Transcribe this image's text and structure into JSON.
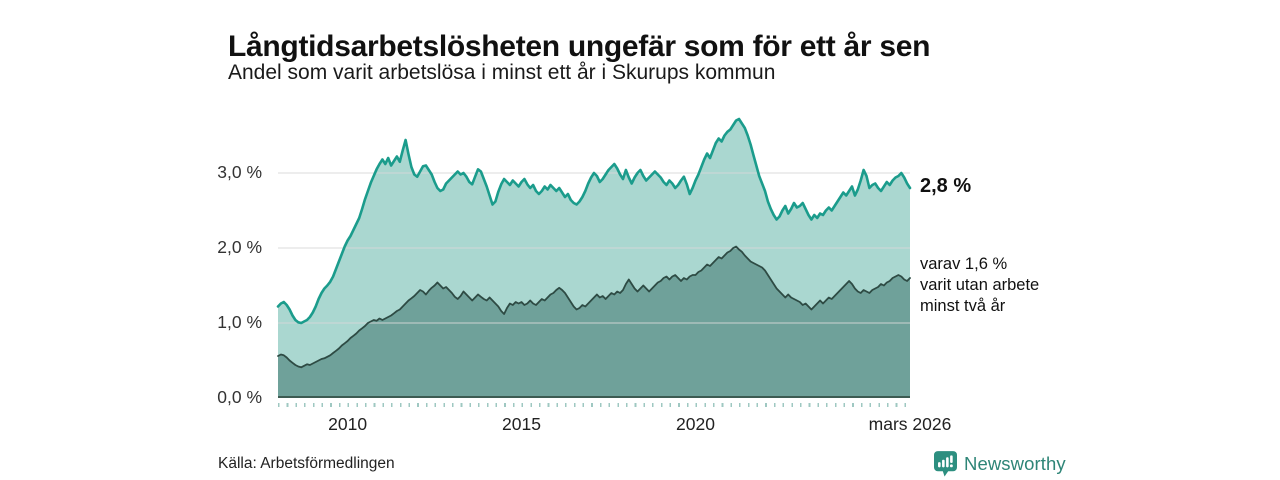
{
  "header": {
    "title": "Långtidsarbetslösheten ungefär som för ett år sen",
    "subtitle": "Andel som varit arbetslösa i minst ett år i Skurups kommun"
  },
  "chart_data": {
    "type": "area",
    "title": "Långtidsarbetslösheten ungefär som för ett år sen",
    "subtitle": "Andel som varit arbetslösa i minst ett år i Skurups kommun",
    "unit": "%",
    "frequency": "monthly",
    "x_start": "2008-01",
    "x_end": "2026-03",
    "ylim": [
      0,
      3.84
    ],
    "grid": "horizontal",
    "gridline_values": [
      1,
      2,
      3
    ],
    "gridline_color": "#d8d8d8",
    "axis_line_color": "#3c5b52",
    "y_ticks": [
      {
        "value": 0,
        "label": "0,0 %"
      },
      {
        "value": 1,
        "label": "1,0 %"
      },
      {
        "value": 2,
        "label": "2,0 %"
      },
      {
        "value": 3,
        "label": "3,0 %"
      }
    ],
    "x_ticks": [
      {
        "month_index": 24,
        "label": "2010"
      },
      {
        "month_index": 84,
        "label": "2015"
      },
      {
        "month_index": 144,
        "label": "2020"
      },
      {
        "month_index": 218,
        "label": "mars 2026"
      }
    ],
    "series": [
      {
        "name": "Andel arbetslösa minst ett år",
        "line_color": "#1b9c8c",
        "fill_color": "#aad7d0",
        "line_width": 2.6,
        "values": [
          1.22,
          1.26,
          1.28,
          1.24,
          1.18,
          1.1,
          1.04,
          1.01,
          1.0,
          1.02,
          1.04,
          1.08,
          1.14,
          1.22,
          1.32,
          1.4,
          1.46,
          1.5,
          1.55,
          1.62,
          1.72,
          1.82,
          1.92,
          2.02,
          2.1,
          2.16,
          2.24,
          2.32,
          2.4,
          2.52,
          2.65,
          2.76,
          2.87,
          2.96,
          3.05,
          3.12,
          3.18,
          3.12,
          3.2,
          3.1,
          3.16,
          3.22,
          3.15,
          3.3,
          3.44,
          3.25,
          3.08,
          2.98,
          2.95,
          3.02,
          3.09,
          3.1,
          3.04,
          2.98,
          2.88,
          2.8,
          2.76,
          2.78,
          2.86,
          2.9,
          2.94,
          2.98,
          3.02,
          2.98,
          3.0,
          2.95,
          2.88,
          2.85,
          2.95,
          3.05,
          3.02,
          2.92,
          2.82,
          2.7,
          2.58,
          2.62,
          2.75,
          2.85,
          2.92,
          2.88,
          2.84,
          2.9,
          2.86,
          2.82,
          2.88,
          2.92,
          2.85,
          2.8,
          2.84,
          2.76,
          2.72,
          2.76,
          2.82,
          2.78,
          2.84,
          2.8,
          2.76,
          2.8,
          2.74,
          2.68,
          2.72,
          2.64,
          2.6,
          2.58,
          2.62,
          2.68,
          2.76,
          2.86,
          2.94,
          3.0,
          2.96,
          2.88,
          2.92,
          2.98,
          3.04,
          3.08,
          3.12,
          3.06,
          2.98,
          2.92,
          3.04,
          2.94,
          2.86,
          2.94,
          3.0,
          3.04,
          2.96,
          2.9,
          2.94,
          2.98,
          3.02,
          2.98,
          2.94,
          2.88,
          2.84,
          2.9,
          2.86,
          2.8,
          2.84,
          2.9,
          2.95,
          2.85,
          2.72,
          2.8,
          2.9,
          2.98,
          3.08,
          3.18,
          3.26,
          3.2,
          3.3,
          3.4,
          3.46,
          3.42,
          3.5,
          3.55,
          3.58,
          3.64,
          3.7,
          3.72,
          3.66,
          3.6,
          3.5,
          3.38,
          3.24,
          3.1,
          2.96,
          2.86,
          2.76,
          2.62,
          2.52,
          2.44,
          2.38,
          2.42,
          2.5,
          2.56,
          2.46,
          2.52,
          2.6,
          2.54,
          2.56,
          2.6,
          2.52,
          2.44,
          2.38,
          2.44,
          2.4,
          2.46,
          2.44,
          2.5,
          2.54,
          2.5,
          2.56,
          2.62,
          2.68,
          2.74,
          2.7,
          2.76,
          2.82,
          2.7,
          2.78,
          2.9,
          3.04,
          2.96,
          2.8,
          2.84,
          2.86,
          2.8,
          2.76,
          2.82,
          2.88,
          2.84,
          2.9,
          2.94,
          2.96,
          3.0,
          2.94,
          2.86,
          2.8
        ]
      },
      {
        "name": "varav utan arbete minst två år",
        "line_color": "#2e4b44",
        "fill_color": "#6fa19a",
        "line_width": 1.8,
        "values": [
          0.56,
          0.58,
          0.57,
          0.54,
          0.5,
          0.47,
          0.44,
          0.42,
          0.41,
          0.43,
          0.45,
          0.44,
          0.46,
          0.48,
          0.5,
          0.52,
          0.53,
          0.55,
          0.57,
          0.6,
          0.63,
          0.66,
          0.7,
          0.73,
          0.76,
          0.8,
          0.83,
          0.86,
          0.9,
          0.93,
          0.96,
          1.0,
          1.02,
          1.04,
          1.03,
          1.06,
          1.04,
          1.06,
          1.08,
          1.1,
          1.13,
          1.16,
          1.18,
          1.22,
          1.26,
          1.3,
          1.33,
          1.36,
          1.4,
          1.44,
          1.42,
          1.38,
          1.43,
          1.47,
          1.5,
          1.54,
          1.5,
          1.46,
          1.48,
          1.44,
          1.4,
          1.35,
          1.32,
          1.36,
          1.42,
          1.38,
          1.34,
          1.3,
          1.34,
          1.38,
          1.35,
          1.32,
          1.3,
          1.34,
          1.3,
          1.26,
          1.22,
          1.16,
          1.12,
          1.2,
          1.26,
          1.24,
          1.28,
          1.26,
          1.28,
          1.24,
          1.26,
          1.3,
          1.26,
          1.24,
          1.28,
          1.32,
          1.3,
          1.34,
          1.38,
          1.4,
          1.44,
          1.47,
          1.44,
          1.4,
          1.34,
          1.28,
          1.22,
          1.18,
          1.2,
          1.24,
          1.22,
          1.26,
          1.3,
          1.34,
          1.38,
          1.34,
          1.36,
          1.32,
          1.36,
          1.4,
          1.38,
          1.42,
          1.4,
          1.44,
          1.52,
          1.58,
          1.52,
          1.46,
          1.42,
          1.46,
          1.5,
          1.46,
          1.42,
          1.46,
          1.5,
          1.54,
          1.56,
          1.6,
          1.62,
          1.58,
          1.62,
          1.64,
          1.6,
          1.56,
          1.6,
          1.58,
          1.62,
          1.64,
          1.64,
          1.68,
          1.7,
          1.74,
          1.78,
          1.76,
          1.8,
          1.84,
          1.88,
          1.86,
          1.9,
          1.94,
          1.96,
          2.0,
          2.02,
          1.98,
          1.95,
          1.9,
          1.86,
          1.82,
          1.8,
          1.78,
          1.76,
          1.74,
          1.7,
          1.64,
          1.58,
          1.52,
          1.46,
          1.42,
          1.38,
          1.34,
          1.38,
          1.34,
          1.32,
          1.3,
          1.28,
          1.24,
          1.26,
          1.22,
          1.18,
          1.22,
          1.26,
          1.3,
          1.26,
          1.3,
          1.34,
          1.32,
          1.36,
          1.4,
          1.44,
          1.48,
          1.52,
          1.56,
          1.52,
          1.46,
          1.42,
          1.4,
          1.44,
          1.42,
          1.4,
          1.44,
          1.46,
          1.48,
          1.52,
          1.5,
          1.54,
          1.56,
          1.6,
          1.62,
          1.64,
          1.62,
          1.58,
          1.56,
          1.6
        ]
      }
    ],
    "annotations": {
      "total": {
        "label": "2,8 %",
        "value": 2.8
      },
      "detail": {
        "lines": [
          "varav 1,6 %",
          "varit utan arbete",
          "minst två år"
        ],
        "value": 1.6
      }
    },
    "legend_position": "none"
  },
  "footer": {
    "source": "Källa: Arbetsförmedlingen",
    "brand": "Newsworthy"
  },
  "colors": {
    "background": "#ffffff",
    "title_text": "#111111",
    "axis_text": "#333333",
    "brand_teal": "#2e8577",
    "brand_icon_teal": "#2d8f80"
  }
}
